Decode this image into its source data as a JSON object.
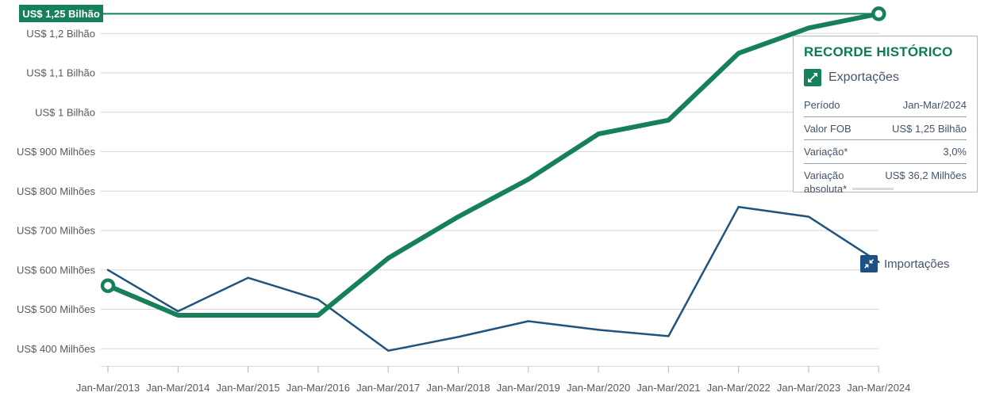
{
  "chart_data": {
    "type": "line",
    "categories": [
      "Jan-Mar/2013",
      "Jan-Mar/2014",
      "Jan-Mar/2015",
      "Jan-Mar/2016",
      "Jan-Mar/2017",
      "Jan-Mar/2018",
      "Jan-Mar/2019",
      "Jan-Mar/2020",
      "Jan-Mar/2021",
      "Jan-Mar/2022",
      "Jan-Mar/2023",
      "Jan-Mar/2024"
    ],
    "unit": "US$ Milhões",
    "series": [
      {
        "name": "Importações",
        "color": "#1f5380",
        "values": [
          600,
          495,
          580,
          525,
          395,
          430,
          470,
          448,
          432,
          760,
          735,
          620
        ]
      },
      {
        "name": "Exportações",
        "color": "#16805d",
        "values": [
          560,
          485,
          485,
          485,
          630,
          735,
          830,
          945,
          980,
          1150,
          1214,
          1250
        ]
      }
    ],
    "y_axis": {
      "range": [
        400,
        1250
      ],
      "tick_values": [
        1200,
        1100,
        1000,
        900,
        800,
        700,
        600,
        500,
        400
      ],
      "tick_labels": [
        "US$ 1,2 Bilhão",
        "US$ 1,1 Bilhão",
        "US$ 1 Bilhão",
        "US$ 900 Milhões",
        "US$ 800 Milhões",
        "US$ 700 Milhões",
        "US$ 600 Milhões",
        "US$ 500 Milhões",
        "US$ 400 Milhões"
      ]
    },
    "reference_line": {
      "value": 1250,
      "label": "US$ 1,25 Bilhão"
    },
    "markers": [
      {
        "series": "Exportações",
        "category": "Jan-Mar/2013",
        "value": 560
      },
      {
        "series": "Exportações",
        "category": "Jan-Mar/2024",
        "value": 1250
      }
    ],
    "grid": true,
    "legend_position": "right-inline"
  },
  "badge": {
    "label": "US$ 1,25 Bilhão"
  },
  "tooltip": {
    "title": "RECORDE HISTÓRICO",
    "series_label": "Exportações",
    "rows": [
      {
        "label": "Período",
        "value": "Jan-Mar/2024"
      },
      {
        "label": "Valor FOB",
        "value": "US$ 1,25 Bilhão"
      },
      {
        "label": "Variação*",
        "value": "3,0%"
      },
      {
        "label": "Variação absoluta*",
        "value": "US$ 36,2 Milhões"
      }
    ]
  },
  "legend": {
    "exportacoes_label": "Exportações",
    "importacoes_label": "Importações"
  },
  "colors": {
    "export_green": "#16805d",
    "import_blue": "#1f5380",
    "import_icon_blue": "#1b5280",
    "axis_text": "#595959",
    "gridline": "#d6d6d6",
    "axis_line": "#d9d9d9",
    "tick": "#b3b3b3",
    "tooltip_text": "#44546a",
    "title_green": "#0d7a58"
  }
}
